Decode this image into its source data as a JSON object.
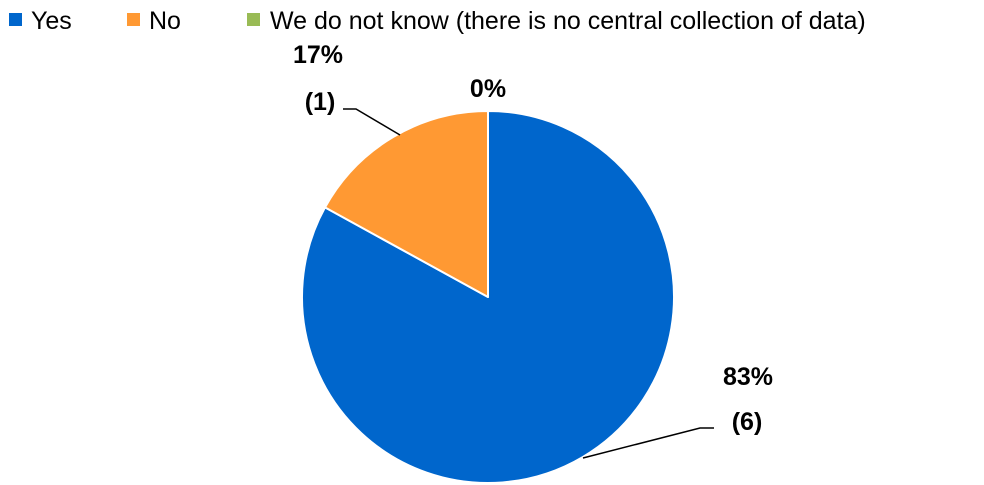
{
  "chart_data": {
    "type": "pie",
    "title": "",
    "legend_position": "top",
    "slices": [
      {
        "name": "Yes",
        "value": 83,
        "count": 6,
        "percent_label": "83%",
        "count_label": "(6)",
        "color": "#0066CC"
      },
      {
        "name": "No",
        "value": 17,
        "count": 1,
        "percent_label": "17%",
        "count_label": "(1)",
        "color": "#FF9933"
      },
      {
        "name": "We do not know (there is no central collection of data)",
        "value": 0,
        "count": 0,
        "percent_label": "0%",
        "count_label": "",
        "color": "#99BB55"
      }
    ]
  }
}
